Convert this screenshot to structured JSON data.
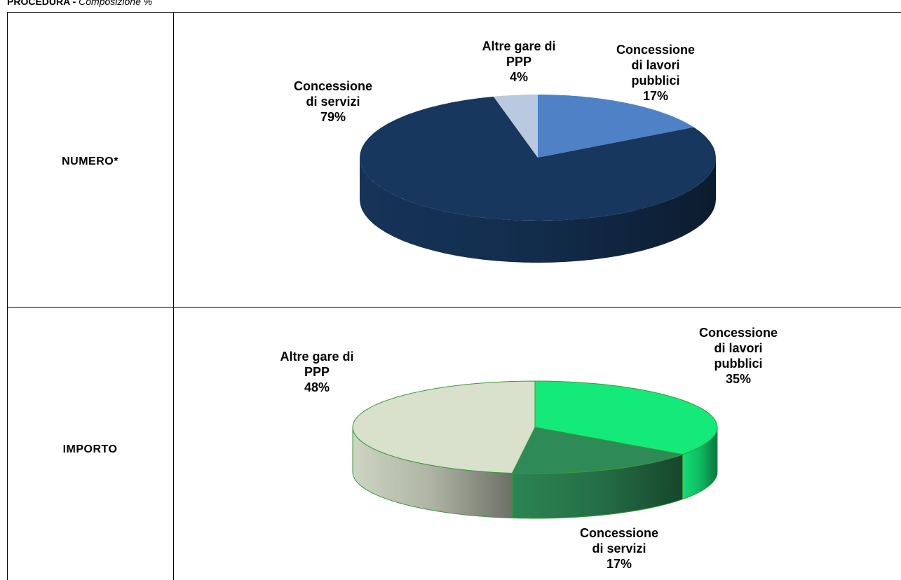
{
  "header": {
    "title": "PROCEDURA -",
    "subtitle": "Composizione %"
  },
  "table": {
    "rows": [
      {
        "label": "NUMERO*",
        "chart": {
          "type": "pie",
          "categories": [
            "Concessione di lavori pubblici",
            "Concessione di servizi",
            "Altre gare di PPP"
          ],
          "values": [
            17,
            79,
            4
          ],
          "value_labels": [
            "17%",
            "79%",
            "4%"
          ],
          "colors": [
            "#4f81c7",
            "#17375e",
            "#b9c9e0"
          ]
        }
      },
      {
        "label": "IMPORTO",
        "chart": {
          "type": "pie",
          "categories": [
            "Concessione di lavori pubblici",
            "Concessione di servizi",
            "Altre gare di PPP"
          ],
          "values": [
            35,
            17,
            48
          ],
          "value_labels": [
            "35%",
            "17%",
            "48%"
          ],
          "colors": [
            "#13ea7a",
            "#2e8b57",
            "#d9e0cc"
          ]
        }
      }
    ]
  }
}
